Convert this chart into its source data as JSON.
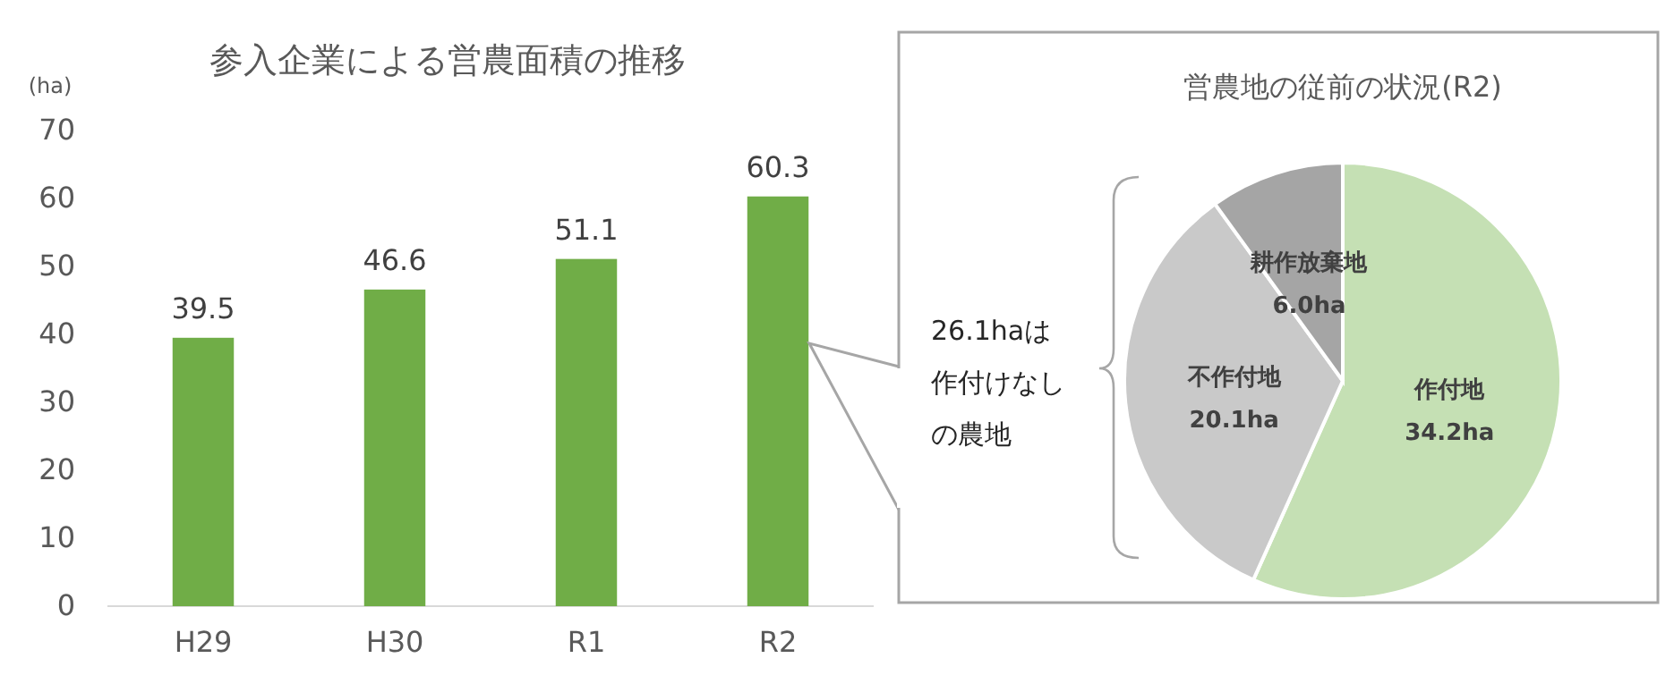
{
  "chart_data": [
    {
      "type": "bar",
      "title": "参入企業による営農面積の推移",
      "ylabel": "(ha)",
      "categories": [
        "H29",
        "H30",
        "R1",
        "R2"
      ],
      "values": [
        39.5,
        46.6,
        51.1,
        60.3
      ],
      "color": "#70ad47",
      "ylim": [
        0,
        70
      ],
      "yticks": [
        0,
        10,
        20,
        30,
        40,
        50,
        60,
        70
      ],
      "data_labels": true
    },
    {
      "type": "pie",
      "title": "営農地の従前の状況(R2)",
      "categories": [
        "作付地",
        "不作付地",
        "耕作放棄地"
      ],
      "values": [
        34.2,
        20.1,
        6.0
      ],
      "colors": [
        "#c5e0b4",
        "#c9c9c9",
        "#a5a5a5"
      ],
      "value_labels": [
        "34.2ha",
        "20.1ha",
        "6.0ha"
      ],
      "annotations": [
        "26.1haは作付けなしの農地"
      ]
    }
  ]
}
